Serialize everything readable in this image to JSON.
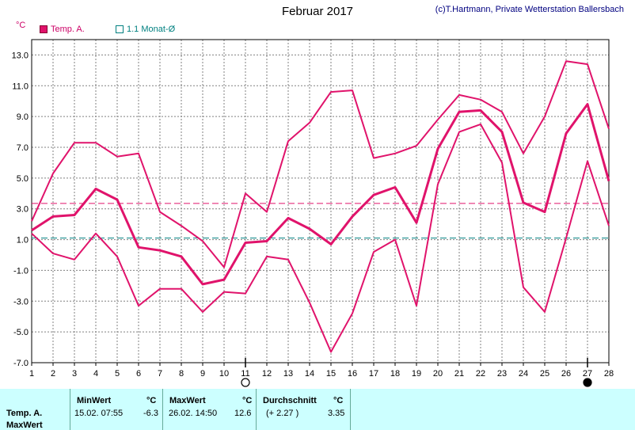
{
  "title": "Februar 2017",
  "credit": "(c)T.Hartmann, Private Wetterstation Ballersbach",
  "unit": "°C",
  "legend": {
    "series1": "Temp. A.",
    "series2": "1.1 Monat-Ø"
  },
  "colors": {
    "temp": "#e0136b",
    "avg_line": "#008080",
    "grid": "#808080"
  },
  "chart_data": {
    "type": "line",
    "ylim": [
      -7,
      14
    ],
    "yticks": [
      "-7.0",
      "-5.0",
      "-3.0",
      "-1.0",
      "1.0",
      "3.0",
      "5.0",
      "7.0",
      "9.0",
      "11.0",
      "13.0"
    ],
    "x": [
      1,
      2,
      3,
      4,
      5,
      6,
      7,
      8,
      9,
      10,
      11,
      12,
      13,
      14,
      15,
      16,
      17,
      18,
      19,
      20,
      21,
      22,
      23,
      24,
      25,
      26,
      27,
      28
    ],
    "series": [
      {
        "role": "max",
        "values": [
          2.2,
          5.3,
          7.3,
          7.3,
          6.4,
          6.6,
          2.8,
          1.9,
          0.9,
          -0.8,
          4.0,
          2.8,
          7.4,
          8.6,
          10.6,
          10.7,
          6.3,
          6.6,
          7.1,
          8.8,
          10.4,
          10.1,
          9.3,
          6.6,
          9.0,
          12.6,
          12.4,
          8.2
        ]
      },
      {
        "role": "mean",
        "values": [
          1.6,
          2.5,
          2.6,
          4.3,
          3.6,
          0.5,
          0.3,
          -0.1,
          -1.9,
          -1.6,
          0.8,
          0.9,
          2.4,
          1.7,
          0.7,
          2.5,
          3.9,
          4.4,
          2.1,
          6.9,
          9.3,
          9.4,
          8.0,
          3.4,
          2.8,
          7.9,
          9.8,
          4.8
        ]
      },
      {
        "role": "min",
        "values": [
          1.4,
          0.1,
          -0.3,
          1.4,
          -0.1,
          -3.3,
          -2.2,
          -2.2,
          -3.7,
          -2.4,
          -2.5,
          -0.1,
          -0.3,
          -3.1,
          -6.3,
          -3.8,
          0.2,
          1.0,
          -3.3,
          4.6,
          8.0,
          8.5,
          6.0,
          -2.1,
          -3.7,
          1.1,
          6.1,
          1.9
        ]
      }
    ],
    "hlines": [
      {
        "label": "monthly mean",
        "value": 3.35,
        "color": "#e0136b"
      },
      {
        "label": "1.1 Monat-Ø",
        "value": 1.1,
        "color": "#008080"
      }
    ],
    "markers": [
      {
        "day": 11,
        "symbol": "open-circle"
      },
      {
        "day": 27,
        "symbol": "filled-circle"
      }
    ],
    "grid": true
  },
  "footer": {
    "row_label1": "Temp. A.",
    "row_label2": "MaxWert",
    "min_header": "MinWert",
    "min_unit": "°C",
    "min_date": "15.02.  07:55",
    "min_value": "-6.3",
    "max_header": "MaxWert",
    "max_unit": "°C",
    "max_date": "26.02.  14:50",
    "max_value": "12.6",
    "avg_header": "Durchschnitt",
    "avg_unit": "°C",
    "avg_diff": "(+ 2.27 )",
    "avg_value": "3.35"
  }
}
